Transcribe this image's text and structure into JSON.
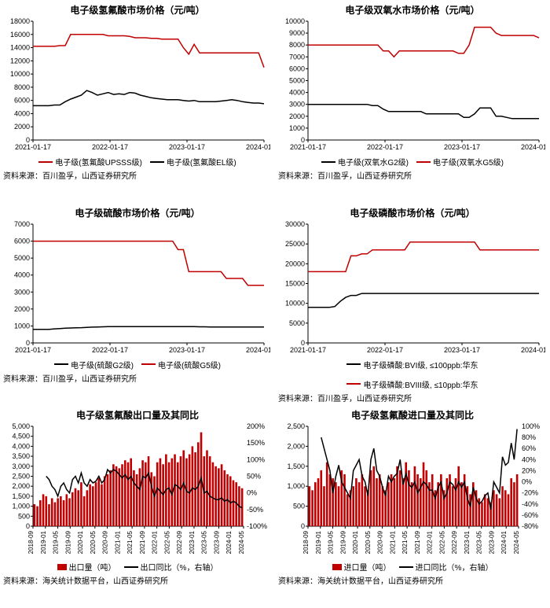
{
  "colors": {
    "red": "#c00000",
    "black": "#000000",
    "bg": "#ffffff"
  },
  "panels": [
    {
      "id": "p1",
      "type": "line",
      "title": "电子级氢氟酸市场价格（元/吨）",
      "title_fontsize": 12,
      "source": "资料来源：百川盈孚，山西证券研究所",
      "x_ticks": [
        "2021-01-17",
        "2022-01-17",
        "2023-01-17",
        "2024-01-17"
      ],
      "y_min": 0,
      "y_max": 18000,
      "y_step": 2000,
      "series": [
        {
          "name": "电子级(氢氟酸UPSSS级)",
          "color": "#c00000",
          "width": 1.5,
          "n": 44,
          "y": [
            14200,
            14200,
            14200,
            14200,
            14200,
            14300,
            14300,
            16000,
            16000,
            16000,
            16000,
            16000,
            16000,
            16000,
            15800,
            15800,
            15800,
            15800,
            15700,
            15500,
            15500,
            15500,
            15400,
            15400,
            15300,
            15300,
            15300,
            15300,
            14000,
            13000,
            14500,
            13200,
            13200,
            13200,
            13200,
            13200,
            13200,
            13200,
            13200,
            13200,
            13200,
            13200,
            13200,
            11000
          ]
        },
        {
          "name": "电子级(氢氟酸EL级)",
          "color": "#000000",
          "width": 1.5,
          "n": 44,
          "y": [
            5200,
            5200,
            5200,
            5200,
            5300,
            5300,
            5800,
            6200,
            6500,
            6800,
            7500,
            7200,
            6800,
            7000,
            7200,
            6900,
            7000,
            6900,
            7200,
            7100,
            6800,
            6600,
            6400,
            6300,
            6200,
            6100,
            6100,
            6100,
            6000,
            5900,
            6000,
            5800,
            5800,
            5800,
            5800,
            5900,
            6000,
            6100,
            6000,
            5800,
            5700,
            5600,
            5600,
            5500
          ]
        }
      ]
    },
    {
      "id": "p2",
      "type": "line",
      "title": "电子级双氧水市场价格（元/吨）",
      "title_fontsize": 12,
      "source": "资料来源：百川盈孚，山西证券研究所",
      "x_ticks": [
        "2021-01-17",
        "2022-01-17",
        "2023-01-17",
        "2024-01-17"
      ],
      "y_min": 0,
      "y_max": 10000,
      "y_step": 1000,
      "series": [
        {
          "name": "电子级(双氧水G2级)",
          "color": "#000000",
          "width": 1.5,
          "n": 44,
          "y": [
            3000,
            3000,
            3000,
            3000,
            3000,
            3000,
            3000,
            3000,
            3000,
            3000,
            3000,
            3000,
            2900,
            2900,
            2600,
            2400,
            2400,
            2400,
            2400,
            2400,
            2400,
            2400,
            2200,
            2200,
            2200,
            2200,
            2200,
            2200,
            2200,
            1900,
            1900,
            2200,
            2700,
            2700,
            2700,
            2000,
            2000,
            1900,
            1800,
            1800,
            1800,
            1800,
            1800,
            1800
          ]
        },
        {
          "name": "电子级(双氧水G5级)",
          "color": "#c00000",
          "width": 1.5,
          "n": 44,
          "y": [
            8000,
            8000,
            8000,
            8000,
            8000,
            8000,
            8000,
            8000,
            8000,
            8000,
            8000,
            8000,
            8000,
            8000,
            7500,
            7500,
            7000,
            7500,
            7500,
            7500,
            7500,
            7500,
            7500,
            7500,
            7500,
            7500,
            7500,
            7500,
            7300,
            7300,
            8000,
            9500,
            9500,
            9500,
            9500,
            9000,
            8800,
            8800,
            8800,
            8800,
            8800,
            8800,
            8800,
            8600
          ]
        }
      ]
    },
    {
      "id": "p3",
      "type": "line",
      "title": "电子级硫酸市场价格（元/吨）",
      "title_fontsize": 12,
      "source": "资料来源：百川盈孚，山西证券研究所",
      "x_ticks": [
        "2021-01-17",
        "2022-01-17",
        "2023-01-17",
        "2024-01-17"
      ],
      "y_min": 0,
      "y_max": 7000,
      "y_step": 1000,
      "series": [
        {
          "name": "电子级(硫酸G2级)",
          "color": "#000000",
          "width": 1.5,
          "n": 44,
          "y": [
            800,
            800,
            800,
            800,
            830,
            850,
            870,
            880,
            890,
            900,
            920,
            930,
            940,
            950,
            960,
            960,
            960,
            960,
            960,
            960,
            960,
            960,
            960,
            960,
            960,
            960,
            960,
            960,
            960,
            960,
            960,
            950,
            950,
            940,
            940,
            940,
            940,
            940,
            940,
            940,
            940,
            940,
            940,
            940
          ]
        },
        {
          "name": "电子级(硫酸G5级)",
          "color": "#c00000",
          "width": 1.5,
          "n": 44,
          "y": [
            6000,
            6000,
            6000,
            6000,
            6000,
            6000,
            6000,
            6000,
            6000,
            6000,
            6000,
            6000,
            6000,
            6000,
            6000,
            6000,
            6000,
            6000,
            6000,
            6000,
            6000,
            6000,
            6000,
            6000,
            6000,
            6000,
            6000,
            5500,
            5500,
            4200,
            4200,
            4200,
            4200,
            4200,
            4200,
            4200,
            3800,
            3800,
            3800,
            3800,
            3400,
            3400,
            3400,
            3400
          ]
        }
      ]
    },
    {
      "id": "p4",
      "type": "line",
      "title": "电子级磷酸市场价格（元/吨）",
      "title_fontsize": 12,
      "source": "资料来源：百川盈孚，山西证券研究所",
      "x_ticks": [
        "2021-01-17",
        "2022-01-17",
        "2023-01-17",
        "2024-01-17"
      ],
      "y_min": 0,
      "y_max": 30000,
      "y_step": 5000,
      "series": [
        {
          "name": "电子级磷酸:BVI级, ≤100ppb:华东",
          "color": "#000000",
          "width": 1.5,
          "n": 44,
          "y": [
            9000,
            9000,
            9000,
            9000,
            9000,
            9200,
            10500,
            11500,
            12000,
            12000,
            12500,
            12500,
            12500,
            12500,
            12500,
            12500,
            12500,
            12500,
            12500,
            12500,
            12500,
            12500,
            12500,
            12500,
            12500,
            12500,
            12500,
            12500,
            12500,
            12500,
            12500,
            12500,
            12500,
            12500,
            12500,
            12500,
            12500,
            12500,
            12500,
            12500,
            12500,
            12500,
            12500,
            12500
          ]
        },
        {
          "name": "电子级磷酸:BVIII级, ≤10ppb:华东",
          "color": "#c00000",
          "width": 1.5,
          "n": 44,
          "y": [
            18000,
            18000,
            18000,
            18000,
            18000,
            18000,
            18000,
            18000,
            22000,
            22000,
            22500,
            22500,
            23500,
            23500,
            23500,
            23500,
            23500,
            23500,
            23500,
            25500,
            25500,
            25500,
            25500,
            25500,
            25500,
            25500,
            25500,
            25500,
            25500,
            25500,
            25500,
            25500,
            23500,
            23500,
            23500,
            23500,
            23500,
            23500,
            23500,
            23500,
            23500,
            23500,
            23500,
            23500
          ]
        }
      ]
    },
    {
      "id": "p5",
      "type": "bar-line",
      "title": "电子级氢氟酸出口量及其同比",
      "title_fontsize": 12,
      "source": "资料来源：海关统计数据平台，山西证券研究所",
      "x_ticks": [
        "2018-09",
        "2019-01",
        "2019-05",
        "2019-09",
        "2020-01",
        "2020-05",
        "2020-09",
        "2021-01",
        "2021-05",
        "2021-09",
        "2022-01",
        "2022-05",
        "2022-09",
        "2023-01",
        "2023-05",
        "2023-09",
        "2024-01",
        "2024-05"
      ],
      "y_min": 0,
      "y_max": 5000,
      "y_step": 500,
      "y2_min": -100,
      "y2_max": 200,
      "y2_step": 50,
      "bar": {
        "name": "出口量（吨）",
        "color": "#c00000",
        "y": [
          1100,
          1000,
          1300,
          1600,
          1500,
          1100,
          1400,
          1200,
          1400,
          1500,
          1300,
          1600,
          1400,
          1700,
          1900,
          1800,
          2200,
          1500,
          1800,
          2100,
          2000,
          2200,
          2400,
          2100,
          2500,
          2600,
          2800,
          3100,
          3000,
          2900,
          3100,
          3300,
          3200,
          3400,
          2800,
          2600,
          2900,
          3300,
          3200,
          3500,
          2700,
          2500,
          3200,
          3400,
          3100,
          3600,
          3200,
          3400,
          3600,
          3200,
          3500,
          3800,
          3400,
          3600,
          4000,
          3700,
          4200,
          4700,
          3500,
          3800,
          3500,
          3200,
          3000,
          2900,
          3100,
          2800,
          2600,
          2500,
          2300,
          2200,
          2000,
          1900
        ]
      },
      "line": {
        "name": "出口同比（%，右轴）",
        "color": "#000000",
        "width": 1.5,
        "y": [
          null,
          null,
          null,
          null,
          50,
          40,
          20,
          10,
          -10,
          20,
          30,
          10,
          0,
          40,
          50,
          30,
          60,
          30,
          20,
          40,
          30,
          35,
          50,
          30,
          40,
          70,
          60,
          70,
          65,
          55,
          45,
          55,
          40,
          50,
          30,
          20,
          10,
          50,
          45,
          60,
          20,
          -10,
          15,
          5,
          -5,
          10,
          15,
          -5,
          25,
          20,
          10,
          30,
          5,
          0,
          15,
          10,
          20,
          45,
          0,
          5,
          -10,
          -15,
          -20,
          -20,
          -15,
          -25,
          -20,
          -30,
          -25,
          -30,
          -40,
          -45
        ]
      }
    },
    {
      "id": "p6",
      "type": "bar-line",
      "title": "电子级氢氟酸进口量及其同比",
      "title_fontsize": 12,
      "source": "资料来源：海关统计数据平台，山西证券研究所",
      "x_ticks": [
        "2018-09",
        "2019-01",
        "2019-05",
        "2019-09",
        "2020-01",
        "2020-05",
        "2020-09",
        "2021-01",
        "2021-05",
        "2021-09",
        "2022-01",
        "2022-05",
        "2022-09",
        "2023-01",
        "2023-05",
        "2023-09",
        "2024-01",
        "2024-05"
      ],
      "y_min": 0,
      "y_max": 2500,
      "y_step": 500,
      "y2_min": -80,
      "y2_max": 100,
      "y2_step": 20,
      "bar": {
        "name": "进口量（吨）",
        "color": "#c00000",
        "y": [
          1000,
          900,
          1100,
          1200,
          1400,
          1000,
          1600,
          1300,
          1200,
          1100,
          1000,
          1400,
          1300,
          800,
          900,
          1000,
          1200,
          1100,
          1300,
          1000,
          900,
          1400,
          1500,
          1200,
          1300,
          1000,
          900,
          1100,
          1300,
          1200,
          1500,
          1400,
          1200,
          1600,
          1400,
          1100,
          1500,
          1300,
          1200,
          1600,
          1400,
          1100,
          1300,
          900,
          1100,
          1300,
          900,
          1200,
          1300,
          1000,
          1200,
          1500,
          1100,
          1300,
          1000,
          800,
          1100,
          900,
          700,
          600,
          800,
          700,
          600,
          900,
          800,
          700,
          1000,
          900,
          800,
          1200,
          1100,
          1300
        ]
      },
      "line": {
        "name": "进口同比（%，右轴）",
        "color": "#000000",
        "width": 1.5,
        "y": [
          null,
          null,
          null,
          null,
          80,
          60,
          40,
          20,
          -20,
          10,
          30,
          0,
          -10,
          -20,
          -30,
          20,
          30,
          40,
          10,
          0,
          -25,
          40,
          60,
          20,
          10,
          -10,
          -25,
          10,
          0,
          10,
          15,
          40,
          -5,
          15,
          -5,
          -10,
          0,
          -20,
          -10,
          0,
          -5,
          -15,
          -15,
          -30,
          -10,
          0,
          -30,
          -20,
          0,
          -5,
          -15,
          0,
          -10,
          0,
          -30,
          -45,
          -10,
          -30,
          -40,
          -35,
          -25,
          -20,
          -50,
          0,
          -10,
          -20,
          45,
          30,
          35,
          70,
          40,
          95
        ]
      }
    }
  ]
}
